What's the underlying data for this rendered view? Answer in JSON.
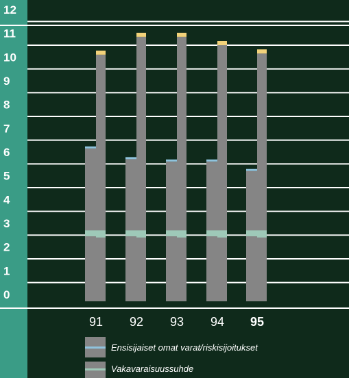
{
  "colors": {
    "background": "#0f2a1b",
    "axis_band": "#3a9c86",
    "bar": "#858585",
    "ratio_band": "#9ec9b8",
    "ratio_top": "#8fc3dd",
    "grey_top": "#f2d27a",
    "grid": "#ffffff",
    "text": "#ffffff"
  },
  "chart_data": {
    "type": "bar",
    "title": "",
    "xlabel": "",
    "ylabel": "",
    "ylim": [
      0,
      12
    ],
    "y_ticks": [
      "0",
      "1",
      "2",
      "3",
      "4",
      "5",
      "6",
      "7",
      "8",
      "9",
      "10",
      "11",
      "12"
    ],
    "categories": [
      "91",
      "92",
      "93",
      "94",
      "95"
    ],
    "highlight_category": "95",
    "series": [
      {
        "name": "Ensisijaiset omat varat/riskisijoitukset",
        "values": [
          6.15,
          5.7,
          5.6,
          5.6,
          5.2
        ],
        "band": [
          2.45,
          2.7
        ]
      },
      {
        "name": "Vakavaraisuussuhde",
        "values": [
          10.1,
          10.85,
          10.85,
          10.5,
          10.15
        ],
        "band": [
          2.4,
          2.7
        ]
      }
    ],
    "legend_position": "bottom"
  }
}
